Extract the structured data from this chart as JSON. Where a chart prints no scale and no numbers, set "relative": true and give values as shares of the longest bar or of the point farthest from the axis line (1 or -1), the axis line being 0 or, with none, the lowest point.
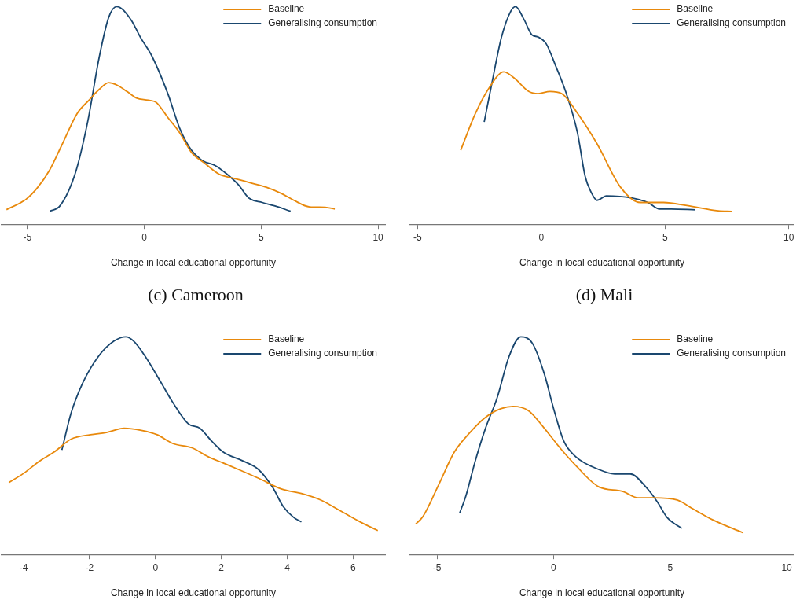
{
  "chart_data": [
    {
      "type": "line",
      "title": "(c) Cameroon",
      "xlabel": "Change in local educational opportunity",
      "relative": true,
      "legend": "top right",
      "marker": "none",
      "line_style": "solid",
      "xlim": [
        -6.1,
        10.3
      ],
      "xticks": [
        -5,
        0,
        5,
        10
      ],
      "series": [
        {
          "name": "Baseline",
          "color": "#e8890c",
          "x": [
            -5.89,
            -5.05,
            -4.55,
            -4.04,
            -3.54,
            -2.86,
            -2.36,
            -1.92,
            -1.52,
            -1.18,
            -0.74,
            -0.34,
            0.17,
            0.51,
            1.01,
            1.52,
            2.02,
            2.59,
            3.2,
            3.87,
            4.55,
            5.22,
            5.89,
            6.4,
            7.07,
            7.74,
            8.15
          ],
          "values": [
            0.067,
            0.115,
            0.17,
            0.25,
            0.36,
            0.51,
            0.57,
            0.62,
            0.65,
            0.64,
            0.61,
            0.58,
            0.57,
            0.56,
            0.49,
            0.42,
            0.33,
            0.28,
            0.23,
            0.21,
            0.19,
            0.17,
            0.14,
            0.11,
            0.08,
            0.078,
            0.07
          ]
        },
        {
          "name": "Generalising consumption",
          "color": "#1a476f",
          "x": [
            -4.04,
            -3.6,
            -2.96,
            -2.42,
            -1.92,
            -1.52,
            -1.18,
            -0.57,
            -0.17,
            0.34,
            1.01,
            1.52,
            2.02,
            2.53,
            3.03,
            3.54,
            4.04,
            4.48,
            5.05,
            5.56,
            6.26
          ],
          "values": [
            0.06,
            0.085,
            0.23,
            0.47,
            0.77,
            0.95,
            1.0,
            0.94,
            0.86,
            0.77,
            0.6,
            0.44,
            0.34,
            0.29,
            0.27,
            0.23,
            0.18,
            0.12,
            0.1,
            0.085,
            0.06
          ]
        }
      ]
    },
    {
      "type": "line",
      "title": "(d) Mali",
      "xlabel": "Change in local educational opportunity",
      "relative": true,
      "legend": "top right",
      "marker": "none",
      "line_style": "solid",
      "xlim": [
        -5.3,
        10.2
      ],
      "xticks": [
        -5,
        0,
        5,
        10
      ],
      "series": [
        {
          "name": "Baseline",
          "color": "#e8890c",
          "x": [
            -3.26,
            -2.66,
            -2.09,
            -1.52,
            -1.08,
            -0.51,
            -0.13,
            0.35,
            0.82,
            1.46,
            2.25,
            3.2,
            3.99,
            4.94,
            5.89,
            7.15,
            7.69
          ],
          "values": [
            0.34,
            0.51,
            0.63,
            0.7,
            0.67,
            0.61,
            0.6,
            0.61,
            0.6,
            0.51,
            0.37,
            0.17,
            0.1,
            0.1,
            0.086,
            0.062,
            0.059
          ]
        },
        {
          "name": "Generalising consumption",
          "color": "#1a476f",
          "x": [
            -2.31,
            -2.03,
            -1.61,
            -1.23,
            -1.04,
            -0.7,
            -0.38,
            -0.13,
            0.19,
            0.57,
            0.98,
            1.46,
            1.77,
            2.0,
            2.25,
            2.63,
            3.67,
            4.3,
            4.78,
            5.25,
            6.23
          ],
          "values": [
            0.47,
            0.63,
            0.86,
            0.98,
            1.0,
            0.94,
            0.87,
            0.86,
            0.83,
            0.73,
            0.61,
            0.42,
            0.22,
            0.15,
            0.11,
            0.13,
            0.12,
            0.1,
            0.07,
            0.07,
            0.066
          ]
        }
      ]
    },
    {
      "type": "line",
      "xlabel": "Change in local educational opportunity",
      "relative": true,
      "legend": "top right",
      "marker": "none",
      "line_style": "solid",
      "xlim": [
        -4.67,
        6.97
      ],
      "xticks": [
        -4,
        -2,
        0,
        2,
        4,
        6
      ],
      "series": [
        {
          "name": "Baseline",
          "color": "#e8890c",
          "x": [
            -4.45,
            -3.98,
            -3.51,
            -3.08,
            -2.56,
            -1.97,
            -1.49,
            -0.95,
            -0.43,
            0.05,
            0.52,
            1.11,
            1.59,
            2.06,
            2.53,
            3.13,
            3.84,
            4.43,
            5.02,
            5.62,
            6.21,
            6.75
          ],
          "values": [
            0.33,
            0.375,
            0.43,
            0.47,
            0.53,
            0.55,
            0.56,
            0.58,
            0.57,
            0.55,
            0.51,
            0.49,
            0.45,
            0.42,
            0.39,
            0.35,
            0.3,
            0.28,
            0.25,
            0.2,
            0.15,
            0.11
          ]
        },
        {
          "name": "Generalising consumption",
          "color": "#1a476f",
          "x": [
            -2.84,
            -2.56,
            -2.2,
            -1.73,
            -1.26,
            -0.9,
            -0.66,
            -0.31,
            0.17,
            0.52,
            1.0,
            1.35,
            1.71,
            2.06,
            2.65,
            3.13,
            3.55,
            3.88,
            4.2,
            4.43
          ],
          "values": [
            0.48,
            0.65,
            0.79,
            0.91,
            0.98,
            1.0,
            0.98,
            0.91,
            0.79,
            0.7,
            0.6,
            0.58,
            0.52,
            0.47,
            0.43,
            0.39,
            0.31,
            0.22,
            0.17,
            0.15
          ]
        }
      ]
    },
    {
      "type": "line",
      "xlabel": "Change in local educational opportunity",
      "relative": true,
      "legend": "top right",
      "marker": "none",
      "line_style": "solid",
      "xlim": [
        -6.15,
        10.3
      ],
      "xticks": [
        -5,
        0,
        5,
        10
      ],
      "series": [
        {
          "name": "Baseline",
          "color": "#e8890c",
          "x": [
            -5.91,
            -5.6,
            -4.93,
            -4.26,
            -3.59,
            -2.92,
            -2.25,
            -1.74,
            -1.07,
            -0.4,
            0.27,
            0.94,
            1.95,
            2.95,
            3.62,
            4.3,
            5.3,
            5.97,
            6.81,
            8.12
          ],
          "values": [
            0.14,
            0.175,
            0.32,
            0.47,
            0.56,
            0.63,
            0.67,
            0.68,
            0.66,
            0.58,
            0.49,
            0.41,
            0.31,
            0.29,
            0.26,
            0.26,
            0.25,
            0.21,
            0.16,
            0.1
          ]
        },
        {
          "name": "Generalising consumption",
          "color": "#1a476f",
          "x": [
            -4.03,
            -3.76,
            -3.36,
            -2.92,
            -2.42,
            -1.91,
            -1.41,
            -0.91,
            -0.4,
            0,
            0.44,
            0.94,
            1.95,
            2.62,
            3.29,
            3.96,
            4.46,
            4.87,
            5.5
          ],
          "values": [
            0.19,
            0.27,
            0.43,
            0.58,
            0.72,
            0.91,
            1.0,
            0.97,
            0.83,
            0.67,
            0.52,
            0.45,
            0.39,
            0.37,
            0.37,
            0.31,
            0.24,
            0.17,
            0.12
          ]
        }
      ]
    }
  ]
}
